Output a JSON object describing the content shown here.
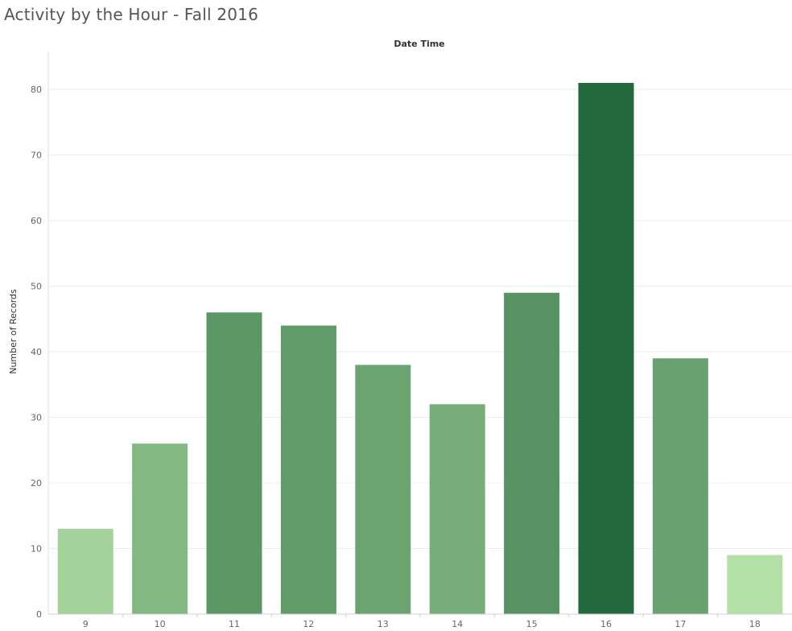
{
  "chart_data": {
    "type": "bar",
    "title": "Activity by the Hour - Fall 2016",
    "xlabel": "Date Time",
    "ylabel": "Number of Records",
    "categories": [
      "9",
      "10",
      "11",
      "12",
      "13",
      "14",
      "15",
      "16",
      "17",
      "18"
    ],
    "values": [
      13,
      26,
      46,
      44,
      38,
      32,
      49,
      81,
      39,
      9
    ],
    "ylim": [
      0,
      85
    ],
    "yticks": [
      0,
      10,
      20,
      30,
      40,
      50,
      60,
      70,
      80
    ],
    "grid": true,
    "legend": "none",
    "color_scale": {
      "low": "#b3e0a6",
      "high": "#24693d"
    }
  }
}
